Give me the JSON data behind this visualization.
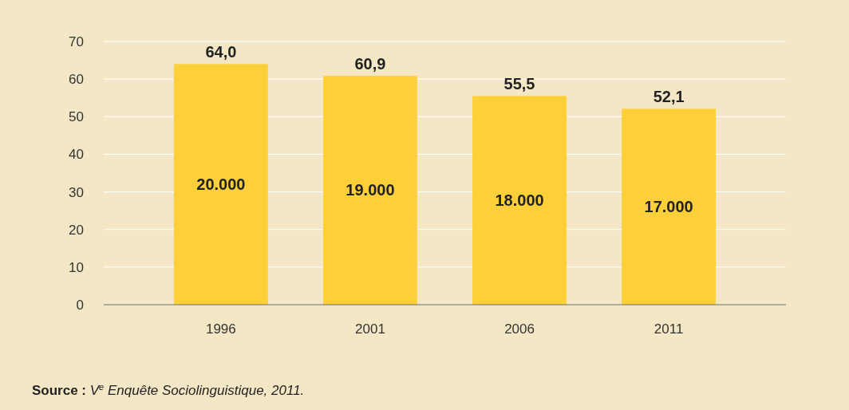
{
  "chart_data": {
    "type": "bar",
    "categories": [
      "1996",
      "2001",
      "2006",
      "2011"
    ],
    "values": [
      64.0,
      60.9,
      55.5,
      52.1
    ],
    "value_labels": [
      "64,0",
      "60,9",
      "55,5",
      "52,1"
    ],
    "color": "#fdd03a",
    "ylim": [
      0,
      70
    ],
    "yticks": [
      0,
      10,
      20,
      30,
      40,
      50,
      60,
      70
    ],
    "grid": "y",
    "annotations": [
      "20.000",
      "19.000",
      "18.000",
      "17.000",
      "Source : V$^{e}$ Enquête Sociolinguistique, 2011."
    ]
  }
}
